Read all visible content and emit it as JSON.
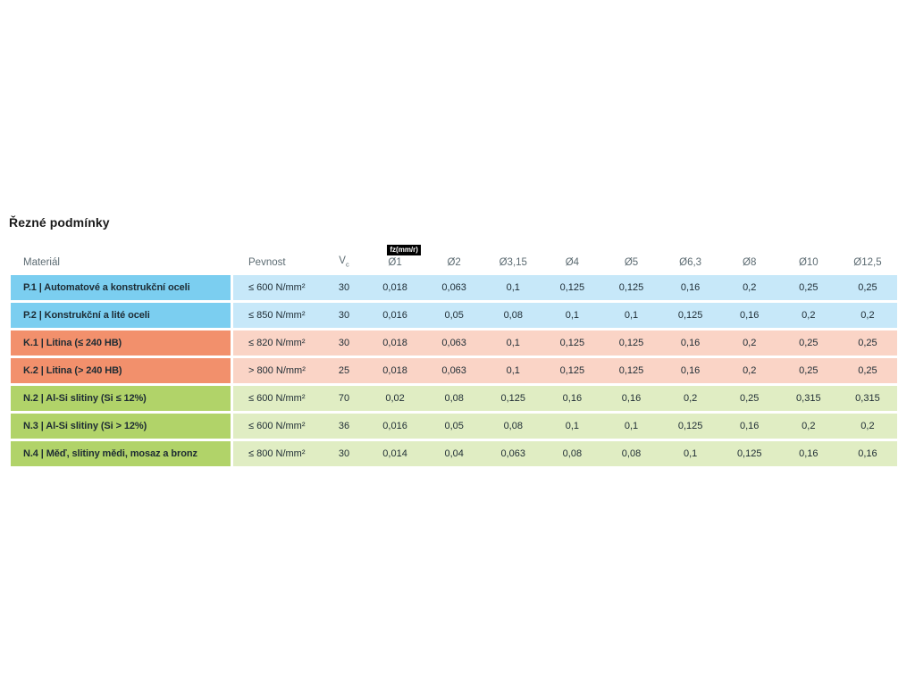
{
  "page": {
    "title": "Řezné podmínky"
  },
  "table": {
    "columns": {
      "material": "Materiál",
      "pevnost": "Pevnost",
      "vc": "V",
      "vc_subscript": "c",
      "fz_badge": "fz(mm/r)",
      "diameters": [
        "Ø1",
        "Ø2",
        "Ø3,15",
        "Ø4",
        "Ø5",
        "Ø6,3",
        "Ø8",
        "Ø10",
        "Ø12,5"
      ]
    },
    "rows": [
      {
        "group": "steel",
        "label": "P.1 | Automatové a konstrukční oceli",
        "pevnost": "≤ 600 N/mm²",
        "vc": "30",
        "fz": [
          "0,018",
          "0,063",
          "0,1",
          "0,125",
          "0,125",
          "0,16",
          "0,2",
          "0,25",
          "0,25"
        ]
      },
      {
        "group": "steel",
        "label": "P.2 | Konstrukční a lité oceli",
        "pevnost": "≤ 850 N/mm²",
        "vc": "30",
        "fz": [
          "0,016",
          "0,05",
          "0,08",
          "0,1",
          "0,1",
          "0,125",
          "0,16",
          "0,2",
          "0,2"
        ]
      },
      {
        "group": "cast-iron",
        "label": "K.1 | Litina (≤ 240 HB)",
        "pevnost": "≤ 820 N/mm²",
        "vc": "30",
        "fz": [
          "0,018",
          "0,063",
          "0,1",
          "0,125",
          "0,125",
          "0,16",
          "0,2",
          "0,25",
          "0,25"
        ]
      },
      {
        "group": "cast-iron",
        "label": "K.2 | Litina (> 240 HB)",
        "pevnost": "> 800 N/mm²",
        "vc": "25",
        "fz": [
          "0,018",
          "0,063",
          "0,1",
          "0,125",
          "0,125",
          "0,16",
          "0,2",
          "0,25",
          "0,25"
        ]
      },
      {
        "group": "non-ferrous",
        "label": "N.2 | Al-Si slitiny (Si ≤ 12%)",
        "pevnost": "≤ 600 N/mm²",
        "vc": "70",
        "fz": [
          "0,02",
          "0,08",
          "0,125",
          "0,16",
          "0,16",
          "0,2",
          "0,25",
          "0,315",
          "0,315"
        ]
      },
      {
        "group": "non-ferrous",
        "label": "N.3 | Al-Si slitiny (Si > 12%)",
        "pevnost": "≤ 600 N/mm²",
        "vc": "36",
        "fz": [
          "0,016",
          "0,05",
          "0,08",
          "0,1",
          "0,1",
          "0,125",
          "0,16",
          "0,2",
          "0,2"
        ]
      },
      {
        "group": "non-ferrous",
        "label": "N.4 | Měď, slitiny mědi, mosaz a bronz",
        "pevnost": "≤ 800 N/mm²",
        "vc": "30",
        "fz": [
          "0,014",
          "0,04",
          "0,063",
          "0,08",
          "0,08",
          "0,1",
          "0,125",
          "0,16",
          "0,16"
        ]
      }
    ]
  },
  "colors": {
    "page_bg": "#FFFFFF",
    "title_text": "#1A1A1A",
    "header_text": "#5C6B72",
    "body_text": "#1D2B33",
    "badge_bg": "#000000",
    "badge_text": "#FFFFFF",
    "steel_label": "#7BCEF0",
    "steel_band": "#C7E8F9",
    "cast_iron_label": "#F2906C",
    "cast_iron_band": "#FAD4C6",
    "non_ferrous_label": "#B1D369",
    "non_ferrous_band": "#E0EDC3"
  }
}
